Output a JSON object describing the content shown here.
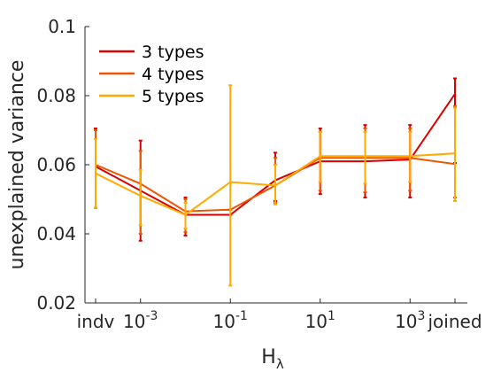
{
  "chart_data": {
    "type": "line",
    "title": "",
    "xlabel": "H",
    "xlabel_sub": "λ",
    "ylabel": "unexplained variance",
    "ylim": [
      0.02,
      0.1
    ],
    "yticks": [
      0.02,
      0.04,
      0.06,
      0.08,
      0.1
    ],
    "ytick_labels": [
      "0.02",
      "0.04",
      "0.06",
      "0.08",
      "0.1"
    ],
    "x_positions": [
      "indv",
      "1e-3",
      "1e-2",
      "1e-1",
      "1e0",
      "1e1",
      "1e2",
      "1e3",
      "joined"
    ],
    "xtick_labels": [
      {
        "base": "indv",
        "exp": ""
      },
      {
        "base": "10",
        "exp": "-3"
      },
      {
        "base": "10",
        "exp": "-1"
      },
      {
        "base": "10",
        "exp": "1"
      },
      {
        "base": "10",
        "exp": "3"
      },
      {
        "base": "joined",
        "exp": ""
      }
    ],
    "xtick_index": [
      0,
      1,
      3,
      5,
      7,
      8
    ],
    "grid": false,
    "legend_position": "top-left",
    "series": [
      {
        "name": "3 types",
        "color": "#D90000",
        "values": [
          0.0595,
          0.0525,
          0.0455,
          0.0455,
          0.0555,
          0.061,
          0.061,
          0.0615,
          0.0805
        ],
        "err_low": [
          0.0475,
          0.038,
          0.0395,
          0.0455,
          0.0495,
          0.0515,
          0.0505,
          0.0505,
          0.0605
        ],
        "err_high": [
          0.0705,
          0.067,
          0.0505,
          0.0455,
          0.0635,
          0.0705,
          0.0715,
          0.0715,
          0.085
        ]
      },
      {
        "name": "4 types",
        "color": "#EE5500",
        "values": [
          0.06,
          0.0545,
          0.0465,
          0.047,
          0.054,
          0.062,
          0.062,
          0.062,
          0.0602
        ],
        "err_low": [
          0.0475,
          0.04,
          0.0405,
          0.047,
          0.049,
          0.0525,
          0.052,
          0.0525,
          0.0505
        ],
        "err_high": [
          0.07,
          0.064,
          0.05,
          0.047,
          0.062,
          0.0695,
          0.0705,
          0.0705,
          0.077
        ]
      },
      {
        "name": "5 types",
        "color": "#FFAA00",
        "values": [
          0.0575,
          0.051,
          0.0455,
          0.055,
          0.054,
          0.0625,
          0.0625,
          0.0625,
          0.0633
        ],
        "err_low": [
          0.0475,
          0.0425,
          0.0415,
          0.025,
          0.0485,
          0.055,
          0.0545,
          0.055,
          0.0495
        ],
        "err_high": [
          0.0675,
          0.0585,
          0.049,
          0.083,
          0.06,
          0.0695,
          0.0695,
          0.0695,
          0.0765
        ]
      }
    ]
  }
}
